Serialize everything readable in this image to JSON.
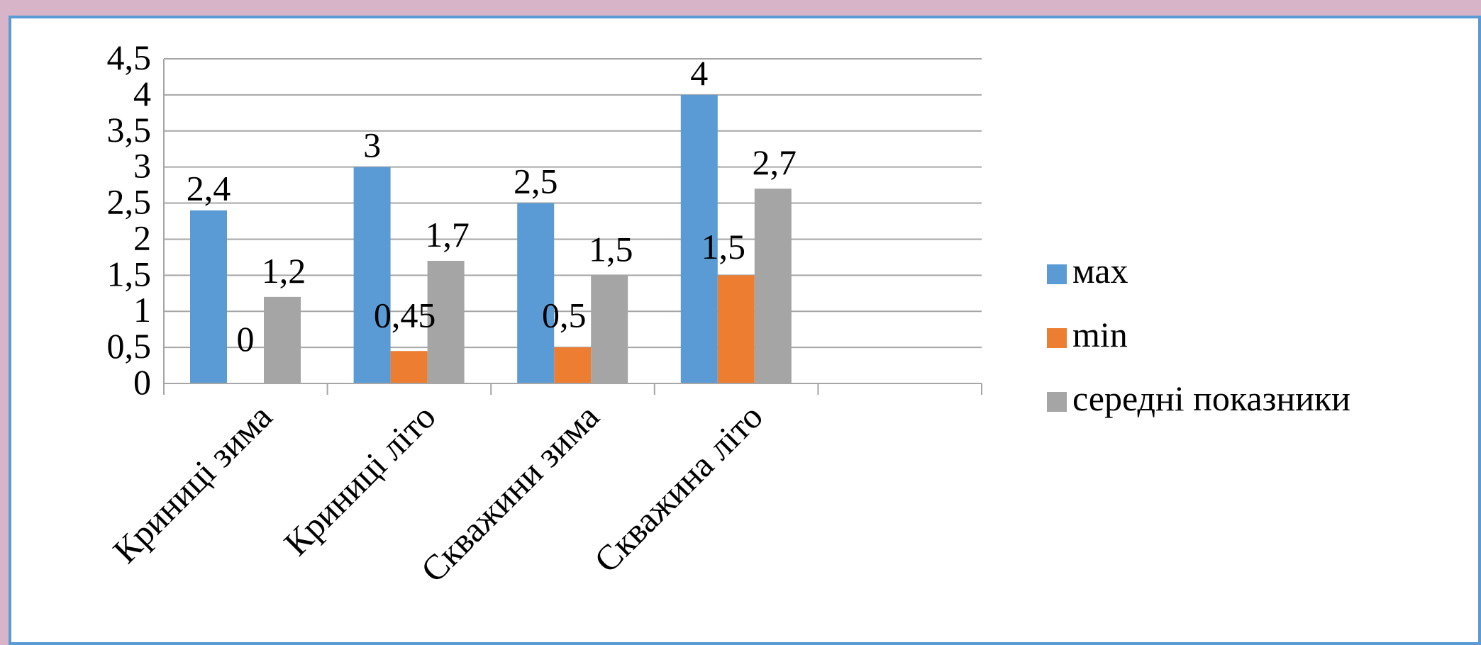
{
  "chart_data": {
    "type": "bar",
    "categories": [
      "Криниці зима",
      "Криниці літо",
      "Скважини зима",
      "Скважина літо",
      ""
    ],
    "series": [
      {
        "name": "мах",
        "color": "#5b9bd5",
        "values": [
          2.4,
          3,
          2.5,
          4,
          null
        ],
        "labels": [
          "2,4",
          "3",
          "2,5",
          "4",
          ""
        ]
      },
      {
        "name": "min",
        "color": "#ed7d31",
        "values": [
          0,
          0.45,
          0.5,
          1.5,
          null
        ],
        "labels": [
          "0",
          "0,45",
          "0,5",
          "1,5",
          ""
        ]
      },
      {
        "name": "середні показники",
        "color": "#a5a5a5",
        "values": [
          1.2,
          1.7,
          1.5,
          2.7,
          null
        ],
        "labels": [
          "1,2",
          "1,7",
          "1,5",
          "2,7",
          ""
        ]
      }
    ],
    "ylim": [
      0,
      4.5
    ],
    "yticks": [
      0,
      0.5,
      1,
      1.5,
      2,
      2.5,
      3,
      3.5,
      4,
      4.5
    ],
    "ytick_labels": [
      "0",
      "0,5",
      "1",
      "1,5",
      "2",
      "2,5",
      "3",
      "3,5",
      "4",
      "4,5"
    ],
    "grid": true,
    "legend_position": "right"
  },
  "colors": {
    "page_background": "#d8b4c8",
    "frame_border": "#5b9bd5",
    "gridline": "#a6a6a6"
  }
}
